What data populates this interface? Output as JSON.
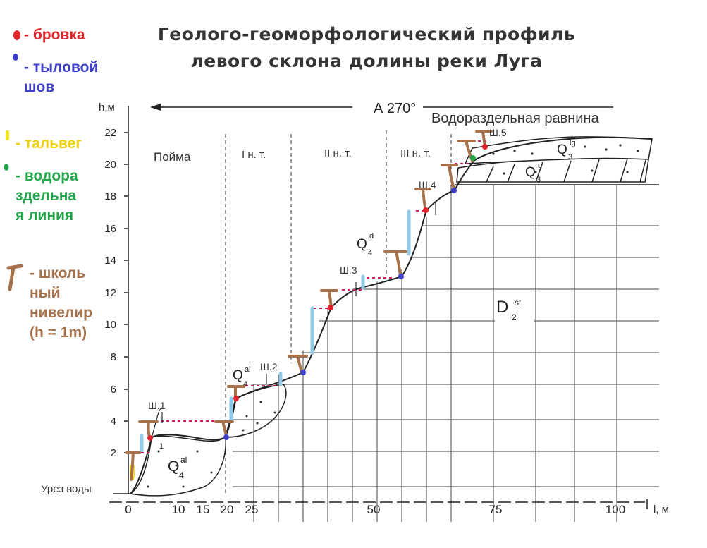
{
  "title": {
    "line1": "Геолого-геоморфологический профиль",
    "line2": "левого склона долины реки Луга"
  },
  "legend": [
    {
      "label_lines": [
        "- бровка"
      ],
      "color": "#e3242b",
      "marker": "red-dot"
    },
    {
      "label_lines": [
        "- тыловой",
        "шов"
      ],
      "color": "#3e3fc9",
      "marker": "blue-dot"
    },
    {
      "label_lines": [
        "- тальвег"
      ],
      "color": "#f5e21b",
      "marker": "yellow-bar"
    },
    {
      "label_lines": [
        "- водора",
        "здельна",
        "я линия"
      ],
      "color": "#22a64a",
      "marker": "green-dot"
    },
    {
      "label_lines": [
        "- школь",
        "ный",
        "нивелир",
        "(h = 1m)"
      ],
      "color": "#a6714b",
      "marker": "level-t"
    }
  ],
  "axes": {
    "y_label": "h,м",
    "y_ticks": [
      "2",
      "4",
      "6",
      "8",
      "10",
      "12",
      "14",
      "16",
      "18",
      "20",
      "22"
    ],
    "x_label": "l, м",
    "x_ticks": [
      "0",
      "10",
      "15",
      "20",
      "25",
      "50",
      "75",
      "100"
    ],
    "water_level": "Урез воды"
  },
  "direction": "А 270°",
  "zones": [
    "Пойма",
    "I н. т.",
    "II н. т.",
    "III н. т.",
    "Водораздельная равнина"
  ],
  "pits": [
    "Ш.1",
    "Ш.2",
    "Ш.3",
    "Ш.4",
    "Ш.5"
  ],
  "pit_point": "1",
  "deposits": [
    {
      "base": "Q",
      "sub": "4",
      "sup": "al"
    },
    {
      "base": "Q",
      "sub": "4",
      "sup": "al"
    },
    {
      "base": "Q",
      "sub": "4",
      "sup": "d"
    },
    {
      "base": "Q",
      "sub": "3",
      "sup": "lg"
    },
    {
      "base": "Q",
      "sub": "3",
      "sup": "g"
    },
    {
      "base": "D",
      "sub": "2",
      "sup": "st"
    }
  ],
  "colors": {
    "brow": "#e3242b",
    "rear_seam": "#3e3fc9",
    "thalweg": "#f5e21b",
    "watershed": "#22a64a",
    "level": "#a6714b",
    "staff": "#8fcbe8",
    "sight": "#d81b60",
    "ink": "#222222"
  }
}
